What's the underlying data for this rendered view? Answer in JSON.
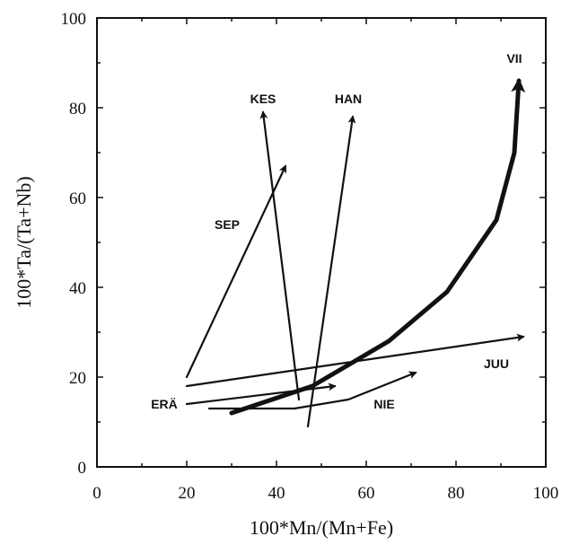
{
  "chart_data": {
    "type": "line",
    "xlabel": "100*Mn/(Mn+Fe)",
    "ylabel": "100*Ta/(Ta+Nb)",
    "xlim": [
      0,
      100
    ],
    "ylim": [
      0,
      100
    ],
    "x_ticks": [
      0,
      20,
      40,
      60,
      80,
      100
    ],
    "y_ticks": [
      0,
      20,
      40,
      60,
      80,
      100
    ],
    "grid": false,
    "series": [
      {
        "name": "VII",
        "bold": true,
        "arrow": true,
        "points": [
          [
            30,
            12
          ],
          [
            48,
            18
          ],
          [
            65,
            28
          ],
          [
            78,
            39
          ],
          [
            89,
            55
          ],
          [
            93,
            70
          ],
          [
            94,
            86
          ]
        ],
        "label_at": [
          93,
          90
        ]
      },
      {
        "name": "KES",
        "bold": false,
        "arrow": true,
        "points": [
          [
            45,
            15
          ],
          [
            37,
            79
          ]
        ],
        "label_at": [
          37,
          81
        ]
      },
      {
        "name": "HAN",
        "bold": false,
        "arrow": true,
        "points": [
          [
            47,
            9
          ],
          [
            57,
            78
          ]
        ],
        "label_at": [
          56,
          81
        ]
      },
      {
        "name": "SEP",
        "bold": false,
        "arrow": true,
        "points": [
          [
            20,
            20
          ],
          [
            42,
            67
          ]
        ],
        "label_at": [
          29,
          53
        ]
      },
      {
        "name": "JUU",
        "bold": false,
        "arrow": true,
        "points": [
          [
            20,
            18
          ],
          [
            95,
            29
          ]
        ],
        "label_at": [
          89,
          22
        ]
      },
      {
        "name": "ERÄ",
        "bold": false,
        "arrow": true,
        "points": [
          [
            20,
            14
          ],
          [
            53,
            18
          ]
        ],
        "label_at": [
          15,
          13
        ]
      },
      {
        "name": "NIE",
        "bold": false,
        "arrow": true,
        "points": [
          [
            25,
            13
          ],
          [
            44,
            13
          ],
          [
            56,
            15
          ],
          [
            71,
            21
          ]
        ],
        "label_at": [
          64,
          13
        ]
      }
    ]
  }
}
